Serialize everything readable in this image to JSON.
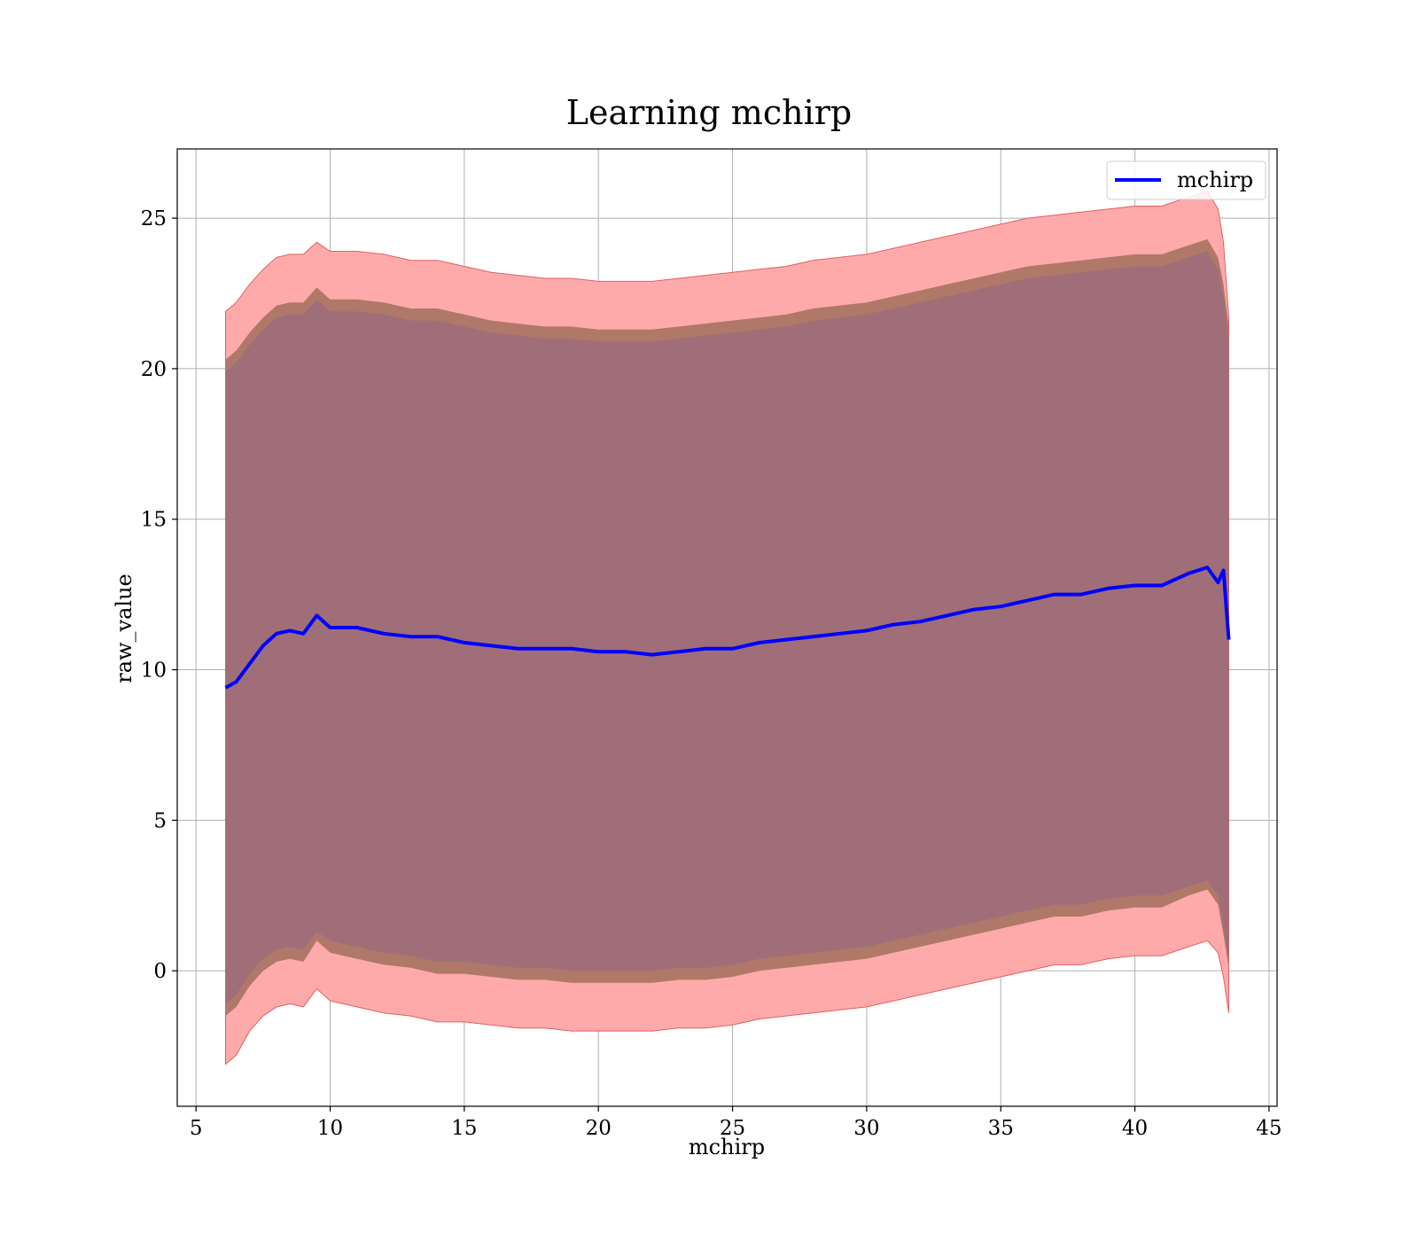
{
  "chart_data": {
    "type": "line",
    "title": "Learning mchirp",
    "xlabel": "mchirp",
    "ylabel": "raw_value",
    "xlim": [
      4.3,
      45.3
    ],
    "ylim": [
      -4.5,
      27.3
    ],
    "xticks": [
      5,
      10,
      15,
      20,
      25,
      30,
      35,
      40,
      45
    ],
    "yticks": [
      0,
      5,
      10,
      15,
      20,
      25
    ],
    "xtick_labels": [
      "5",
      "10",
      "15",
      "20",
      "25",
      "30",
      "35",
      "40",
      "45"
    ],
    "ytick_labels": [
      "0",
      "5",
      "10",
      "15",
      "20",
      "25"
    ],
    "grid": true,
    "legend": {
      "location": "upper right",
      "entries": [
        "mchirp"
      ]
    },
    "colors": {
      "line": "#0000ff",
      "band_outer": "#ffaaaa",
      "band_outer_edge": "#e06060",
      "band_middle": "#b07868",
      "band_inner": "#a06e78",
      "grid": "#b0b0b0"
    },
    "series": [
      {
        "name": "mchirp",
        "x": [
          6.1,
          6.5,
          7.0,
          7.5,
          8.0,
          8.5,
          9.0,
          9.5,
          10.0,
          11.0,
          12.0,
          13.0,
          14.0,
          15.0,
          16.0,
          17.0,
          18.0,
          19.0,
          20.0,
          21.0,
          22.0,
          23.0,
          24.0,
          25.0,
          26.0,
          27.0,
          28.0,
          29.0,
          30.0,
          31.0,
          32.0,
          33.0,
          34.0,
          35.0,
          36.0,
          37.0,
          38.0,
          39.0,
          40.0,
          41.0,
          42.0,
          42.7,
          43.1,
          43.3,
          43.5
        ],
        "y": [
          9.4,
          9.6,
          10.2,
          10.8,
          11.2,
          11.3,
          11.2,
          11.8,
          11.4,
          11.4,
          11.2,
          11.1,
          11.1,
          10.9,
          10.8,
          10.7,
          10.7,
          10.7,
          10.6,
          10.6,
          10.5,
          10.6,
          10.7,
          10.7,
          10.9,
          11.0,
          11.1,
          11.2,
          11.3,
          11.5,
          11.6,
          11.8,
          12.0,
          12.1,
          12.3,
          12.5,
          12.5,
          12.7,
          12.8,
          12.8,
          13.2,
          13.4,
          12.9,
          13.3,
          11.0
        ]
      }
    ],
    "bands": [
      {
        "lower": [
          -3.1,
          -2.8,
          -2.0,
          -1.5,
          -1.2,
          -1.1,
          -1.2,
          -0.6,
          -1.0,
          -1.2,
          -1.4,
          -1.5,
          -1.7,
          -1.7,
          -1.8,
          -1.9,
          -1.9,
          -2.0,
          -2.0,
          -2.0,
          -2.0,
          -1.9,
          -1.9,
          -1.8,
          -1.6,
          -1.5,
          -1.4,
          -1.3,
          -1.2,
          -1.0,
          -0.8,
          -0.6,
          -0.4,
          -0.2,
          0.0,
          0.2,
          0.2,
          0.4,
          0.5,
          0.5,
          0.8,
          1.0,
          0.6,
          -0.2,
          -1.4
        ],
        "upper": [
          21.9,
          22.2,
          22.8,
          23.3,
          23.7,
          23.8,
          23.8,
          24.2,
          23.9,
          23.9,
          23.8,
          23.6,
          23.6,
          23.4,
          23.2,
          23.1,
          23.0,
          23.0,
          22.9,
          22.9,
          22.9,
          23.0,
          23.1,
          23.2,
          23.3,
          23.4,
          23.6,
          23.7,
          23.8,
          24.0,
          24.2,
          24.4,
          24.6,
          24.8,
          25.0,
          25.1,
          25.2,
          25.3,
          25.4,
          25.4,
          25.7,
          25.9,
          25.3,
          24.2,
          21.7
        ]
      },
      {
        "lower": [
          -1.5,
          -1.2,
          -0.5,
          0.0,
          0.3,
          0.4,
          0.3,
          1.0,
          0.6,
          0.4,
          0.2,
          0.1,
          -0.1,
          -0.1,
          -0.2,
          -0.3,
          -0.3,
          -0.4,
          -0.4,
          -0.4,
          -0.4,
          -0.3,
          -0.3,
          -0.2,
          0.0,
          0.1,
          0.2,
          0.3,
          0.4,
          0.6,
          0.8,
          1.0,
          1.2,
          1.4,
          1.6,
          1.8,
          1.8,
          2.0,
          2.1,
          2.1,
          2.5,
          2.7,
          2.2,
          1.2,
          0.1
        ],
        "upper": [
          20.3,
          20.6,
          21.2,
          21.7,
          22.1,
          22.2,
          22.2,
          22.7,
          22.3,
          22.3,
          22.2,
          22.0,
          22.0,
          21.8,
          21.6,
          21.5,
          21.4,
          21.4,
          21.3,
          21.3,
          21.3,
          21.4,
          21.5,
          21.6,
          21.7,
          21.8,
          22.0,
          22.1,
          22.2,
          22.4,
          22.6,
          22.8,
          23.0,
          23.2,
          23.4,
          23.5,
          23.6,
          23.7,
          23.8,
          23.8,
          24.1,
          24.3,
          23.7,
          22.8,
          21.4
        ]
      },
      {
        "lower": [
          -1.1,
          -0.8,
          -0.1,
          0.4,
          0.7,
          0.8,
          0.7,
          1.3,
          1.0,
          0.8,
          0.6,
          0.5,
          0.3,
          0.3,
          0.2,
          0.1,
          0.1,
          0.0,
          0.0,
          0.0,
          0.0,
          0.1,
          0.1,
          0.2,
          0.4,
          0.5,
          0.6,
          0.7,
          0.8,
          1.0,
          1.2,
          1.4,
          1.6,
          1.8,
          2.0,
          2.2,
          2.2,
          2.4,
          2.5,
          2.5,
          2.8,
          3.0,
          2.5,
          1.5,
          0.3
        ],
        "upper": [
          19.9,
          20.2,
          20.8,
          21.3,
          21.7,
          21.8,
          21.8,
          22.3,
          21.9,
          21.9,
          21.8,
          21.6,
          21.6,
          21.4,
          21.2,
          21.1,
          21.0,
          21.0,
          20.9,
          20.9,
          20.9,
          21.0,
          21.1,
          21.2,
          21.3,
          21.4,
          21.6,
          21.7,
          21.8,
          22.0,
          22.2,
          22.4,
          22.6,
          22.8,
          23.0,
          23.1,
          23.2,
          23.3,
          23.4,
          23.4,
          23.7,
          23.9,
          23.3,
          22.4,
          21.0
        ]
      }
    ]
  }
}
